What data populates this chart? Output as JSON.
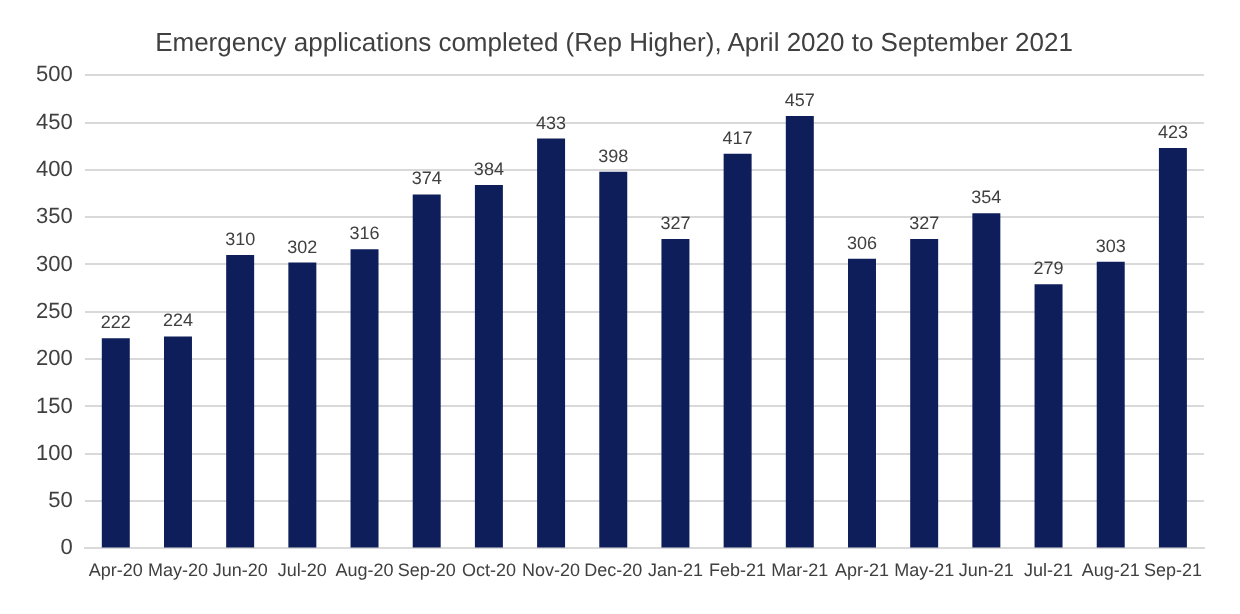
{
  "chart_data": {
    "type": "bar",
    "title": "Emergency applications completed (Rep Higher), April 2020 to September 2021",
    "categories": [
      "Apr-20",
      "May-20",
      "Jun-20",
      "Jul-20",
      "Aug-20",
      "Sep-20",
      "Oct-20",
      "Nov-20",
      "Dec-20",
      "Jan-21",
      "Feb-21",
      "Mar-21",
      "Apr-21",
      "May-21",
      "Jun-21",
      "Jul-21",
      "Aug-21",
      "Sep-21"
    ],
    "values": [
      222,
      224,
      310,
      302,
      316,
      374,
      384,
      433,
      398,
      327,
      417,
      457,
      306,
      327,
      354,
      279,
      303,
      423
    ],
    "color": "#0e1e5b",
    "ylim": [
      0,
      500
    ],
    "yticks": [
      0,
      50,
      100,
      150,
      200,
      250,
      300,
      350,
      400,
      450,
      500
    ],
    "grid": "y",
    "data_labels": true
  }
}
